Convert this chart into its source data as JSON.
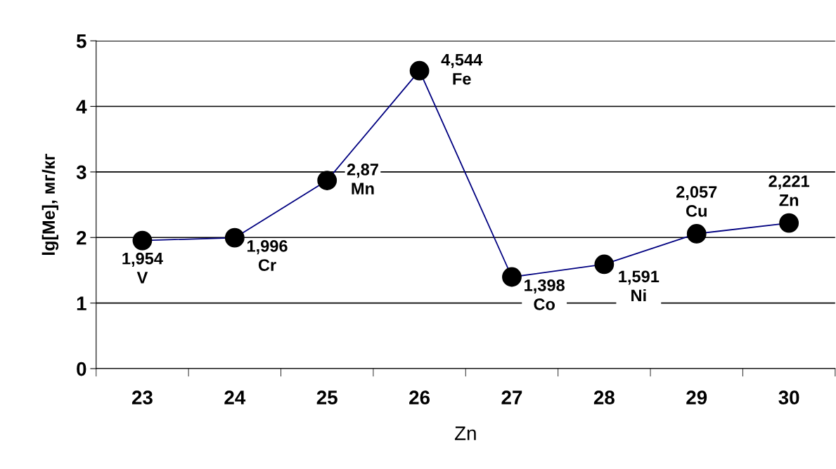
{
  "chart_data": {
    "type": "line",
    "xlabel": "Zn",
    "ylabel": "lg[Me], мг/кг",
    "categories": [
      "23",
      "24",
      "25",
      "26",
      "27",
      "28",
      "29",
      "30"
    ],
    "series": [
      {
        "color": "#000080",
        "values": [
          1.954,
          1.996,
          2.87,
          4.544,
          1.398,
          1.591,
          2.057,
          2.221
        ]
      }
    ],
    "value_labels": [
      "1,954\nV",
      "1,996\nCr",
      "2,87\nMn",
      "4,544\nFe",
      "1,398\nCo",
      "1,591\nNi",
      "2,057\nCu",
      "2,221\nZn"
    ],
    "ylim": [
      0,
      5
    ],
    "yticks": [
      0,
      1,
      2,
      3,
      4,
      5
    ],
    "grid": "y",
    "marker": "circle",
    "line_style": "solid"
  }
}
